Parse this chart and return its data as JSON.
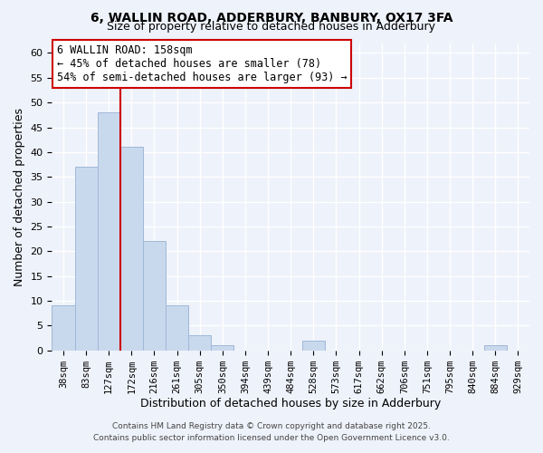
{
  "title1": "6, WALLIN ROAD, ADDERBURY, BANBURY, OX17 3FA",
  "title2": "Size of property relative to detached houses in Adderbury",
  "xlabel": "Distribution of detached houses by size in Adderbury",
  "ylabel": "Number of detached properties",
  "bar_labels": [
    "38sqm",
    "83sqm",
    "127sqm",
    "172sqm",
    "216sqm",
    "261sqm",
    "305sqm",
    "350sqm",
    "394sqm",
    "439sqm",
    "484sqm",
    "528sqm",
    "573sqm",
    "617sqm",
    "662sqm",
    "706sqm",
    "751sqm",
    "795sqm",
    "840sqm",
    "884sqm",
    "929sqm"
  ],
  "bar_values": [
    9,
    37,
    48,
    41,
    22,
    9,
    3,
    1,
    0,
    0,
    0,
    2,
    0,
    0,
    0,
    0,
    0,
    0,
    0,
    1,
    0
  ],
  "bar_color": "#c9d9ed",
  "bar_edge_color": "#a0b8d8",
  "ylim": [
    0,
    62
  ],
  "yticks": [
    0,
    5,
    10,
    15,
    20,
    25,
    30,
    35,
    40,
    45,
    50,
    55,
    60
  ],
  "vline_color": "#cc0000",
  "annotation_title": "6 WALLIN ROAD: 158sqm",
  "annotation_line1": "← 45% of detached houses are smaller (78)",
  "annotation_line2": "54% of semi-detached houses are larger (93) →",
  "footer1": "Contains HM Land Registry data © Crown copyright and database right 2025.",
  "footer2": "Contains public sector information licensed under the Open Government Licence v3.0.",
  "background_color": "#eef2fa",
  "grid_color": "#ffffff"
}
